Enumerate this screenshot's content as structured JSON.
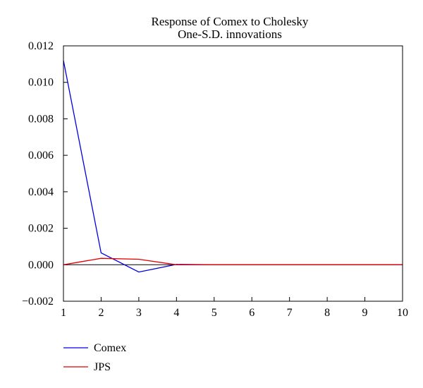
{
  "chart_data": {
    "type": "line",
    "title_lines": [
      "Response of Comex to Cholesky",
      "One-S.D. innovations"
    ],
    "x": [
      1,
      2,
      3,
      4,
      5,
      6,
      7,
      8,
      9,
      10
    ],
    "xlim": [
      1,
      10
    ],
    "ylim": [
      -0.002,
      0.012
    ],
    "x_ticks": [
      1,
      2,
      3,
      4,
      5,
      6,
      7,
      8,
      9,
      10
    ],
    "y_ticks": [
      -0.002,
      0.0,
      0.002,
      0.004,
      0.006,
      0.008,
      0.01,
      0.012
    ],
    "y_tick_labels": [
      "−0.002",
      "0.000",
      "0.002",
      "0.004",
      "0.006",
      "0.008",
      "0.010",
      "0.012"
    ],
    "zero_line": true,
    "grid": false,
    "legend_position": "bottom-left",
    "series": [
      {
        "name": "Comex",
        "color": "#0000e0",
        "values": [
          0.0112,
          0.00065,
          -0.0004,
          2e-05,
          0.0,
          0.0,
          0.0,
          0.0,
          0.0,
          0.0
        ]
      },
      {
        "name": "JPS",
        "color": "#e00000",
        "values": [
          0.0,
          0.00035,
          0.0003,
          0.0,
          0.0,
          0.0,
          0.0,
          0.0,
          0.0,
          0.0
        ]
      }
    ]
  }
}
